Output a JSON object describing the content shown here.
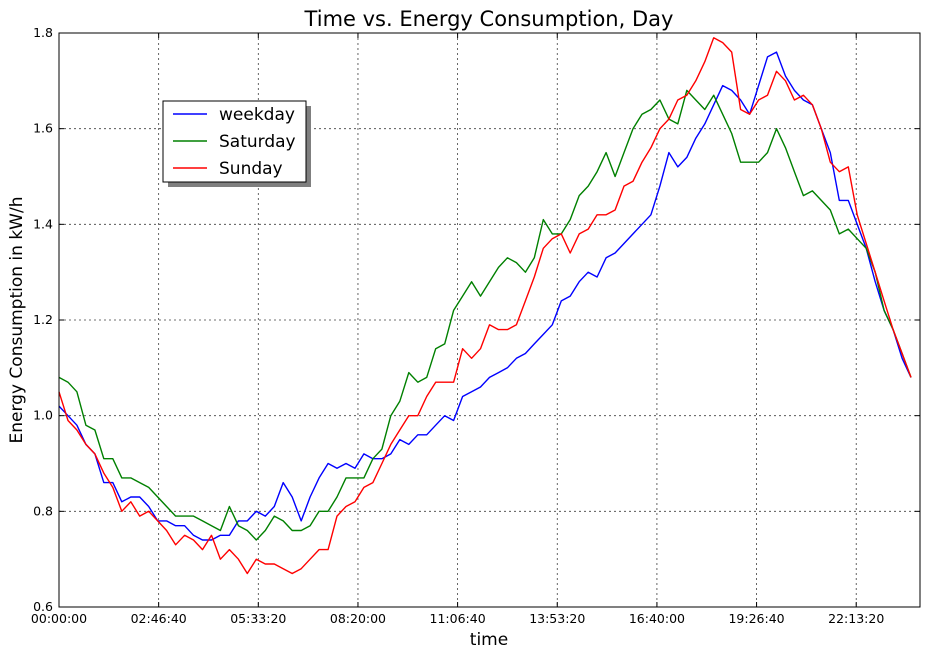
{
  "chart_data": {
    "type": "line",
    "title": "Time vs. Energy Consumption, Day",
    "xlabel": "time",
    "ylabel": "Energy Consumption in kW/h",
    "xlim": [
      0,
      86400
    ],
    "ylim": [
      0.6,
      1.8
    ],
    "x_tick_values": [
      0,
      10000,
      20000,
      30000,
      40000,
      50000,
      60000,
      70000,
      80000
    ],
    "x_tick_labels": [
      "00:00:00",
      "02:46:40",
      "05:33:20",
      "08:20:00",
      "11:06:40",
      "13:53:20",
      "16:40:00",
      "19:26:40",
      "22:13:20"
    ],
    "y_tick_values": [
      0.6,
      0.8,
      1.0,
      1.2,
      1.4,
      1.6,
      1.8
    ],
    "y_tick_labels": [
      "0.6",
      "0.8",
      "1.0",
      "1.2",
      "1.4",
      "1.6",
      "1.8"
    ],
    "grid": true,
    "legend_position": "upper-left",
    "x_step_seconds": 900,
    "series": [
      {
        "name": "weekday",
        "color": "#0000ff",
        "values": [
          1.02,
          1.0,
          0.98,
          0.94,
          0.92,
          0.86,
          0.86,
          0.82,
          0.83,
          0.83,
          0.81,
          0.78,
          0.78,
          0.77,
          0.77,
          0.75,
          0.74,
          0.74,
          0.75,
          0.75,
          0.78,
          0.78,
          0.8,
          0.79,
          0.81,
          0.86,
          0.83,
          0.78,
          0.83,
          0.87,
          0.9,
          0.89,
          0.9,
          0.89,
          0.92,
          0.91,
          0.91,
          0.92,
          0.95,
          0.94,
          0.96,
          0.96,
          0.98,
          1.0,
          0.99,
          1.04,
          1.05,
          1.06,
          1.08,
          1.09,
          1.1,
          1.12,
          1.13,
          1.15,
          1.17,
          1.19,
          1.24,
          1.25,
          1.28,
          1.3,
          1.29,
          1.33,
          1.34,
          1.36,
          1.38,
          1.4,
          1.42,
          1.48,
          1.55,
          1.52,
          1.54,
          1.58,
          1.61,
          1.65,
          1.69,
          1.68,
          1.66,
          1.63,
          1.69,
          1.75,
          1.76,
          1.71,
          1.68,
          1.66,
          1.65,
          1.6,
          1.55,
          1.45,
          1.45,
          1.4,
          1.35,
          1.28,
          1.22,
          1.18,
          1.12,
          1.08
        ]
      },
      {
        "name": "Saturday",
        "color": "#008000",
        "values": [
          1.08,
          1.07,
          1.05,
          0.98,
          0.97,
          0.91,
          0.91,
          0.87,
          0.87,
          0.86,
          0.85,
          0.83,
          0.81,
          0.79,
          0.79,
          0.79,
          0.78,
          0.77,
          0.76,
          0.81,
          0.77,
          0.76,
          0.74,
          0.76,
          0.79,
          0.78,
          0.76,
          0.76,
          0.77,
          0.8,
          0.8,
          0.83,
          0.87,
          0.87,
          0.87,
          0.91,
          0.93,
          1.0,
          1.03,
          1.09,
          1.07,
          1.08,
          1.14,
          1.15,
          1.22,
          1.25,
          1.28,
          1.25,
          1.28,
          1.31,
          1.33,
          1.32,
          1.3,
          1.33,
          1.41,
          1.38,
          1.38,
          1.41,
          1.46,
          1.48,
          1.51,
          1.55,
          1.5,
          1.55,
          1.6,
          1.63,
          1.64,
          1.66,
          1.62,
          1.61,
          1.68,
          1.66,
          1.64,
          1.67,
          1.63,
          1.59,
          1.53,
          1.53,
          1.53,
          1.55,
          1.6,
          1.56,
          1.51,
          1.46,
          1.47,
          1.45,
          1.43,
          1.38,
          1.39,
          1.37,
          1.35,
          1.3,
          1.22,
          1.18,
          1.13,
          1.08
        ]
      },
      {
        "name": "Sunday",
        "color": "#ff0000",
        "values": [
          1.05,
          0.99,
          0.97,
          0.94,
          0.92,
          0.88,
          0.85,
          0.8,
          0.82,
          0.79,
          0.8,
          0.78,
          0.76,
          0.73,
          0.75,
          0.74,
          0.72,
          0.75,
          0.7,
          0.72,
          0.7,
          0.67,
          0.7,
          0.69,
          0.69,
          0.68,
          0.67,
          0.68,
          0.7,
          0.72,
          0.72,
          0.79,
          0.81,
          0.82,
          0.85,
          0.86,
          0.9,
          0.94,
          0.97,
          1.0,
          1.0,
          1.04,
          1.07,
          1.07,
          1.07,
          1.14,
          1.12,
          1.14,
          1.19,
          1.18,
          1.18,
          1.19,
          1.24,
          1.29,
          1.35,
          1.37,
          1.38,
          1.34,
          1.38,
          1.39,
          1.42,
          1.42,
          1.43,
          1.48,
          1.49,
          1.53,
          1.56,
          1.6,
          1.62,
          1.66,
          1.67,
          1.7,
          1.74,
          1.79,
          1.78,
          1.76,
          1.64,
          1.63,
          1.66,
          1.67,
          1.72,
          1.7,
          1.66,
          1.67,
          1.65,
          1.6,
          1.53,
          1.51,
          1.52,
          1.42,
          1.36,
          1.3,
          1.24,
          1.18,
          1.13,
          1.08
        ]
      }
    ]
  }
}
